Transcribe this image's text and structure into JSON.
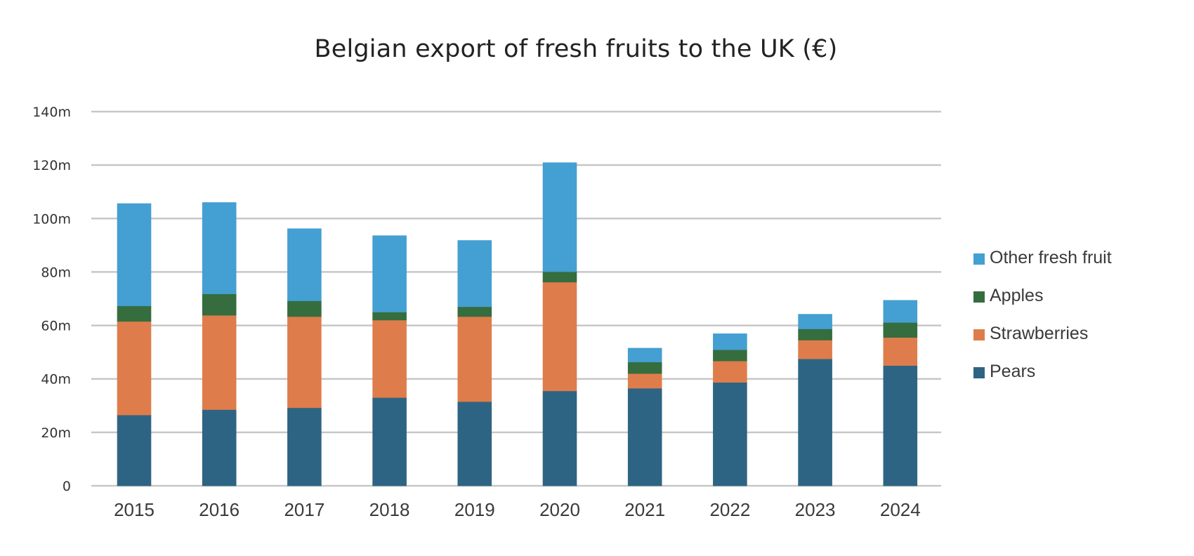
{
  "chart_data": {
    "type": "bar",
    "stacked": true,
    "title": "Belgian export of fresh fruits to the UK (€)",
    "xlabel": "",
    "ylabel": "",
    "ylim": [
      0,
      140
    ],
    "ytick_values": [
      0,
      20,
      40,
      60,
      80,
      100,
      120,
      140
    ],
    "ytick_labels": [
      "0",
      "20m",
      "40m",
      "60m",
      "80m",
      "100m",
      "120m",
      "140m"
    ],
    "grid": true,
    "legend_position": "right",
    "categories": [
      "2015",
      "2016",
      "2017",
      "2018",
      "2019",
      "2020",
      "2021",
      "2022",
      "2023",
      "2024"
    ],
    "series": [
      {
        "name": "Pears",
        "color": "#2E6483",
        "values": [
          26.5,
          28.5,
          29.2,
          33.0,
          31.5,
          35.5,
          36.5,
          38.7,
          47.5,
          45.0
        ]
      },
      {
        "name": "Strawberries",
        "color": "#DE7D4B",
        "values": [
          35.0,
          35.3,
          34.1,
          29.0,
          31.8,
          40.7,
          5.5,
          8.0,
          7.0,
          10.5
        ]
      },
      {
        "name": "Apples",
        "color": "#356D3F",
        "values": [
          5.8,
          8.0,
          5.9,
          3.0,
          3.7,
          3.9,
          4.3,
          4.2,
          4.2,
          5.6
        ]
      },
      {
        "name": "Other fresh fruit",
        "color": "#449FD2",
        "values": [
          38.3,
          34.2,
          27.0,
          28.6,
          24.8,
          40.8,
          5.2,
          6.0,
          5.5,
          8.3
        ]
      }
    ]
  }
}
